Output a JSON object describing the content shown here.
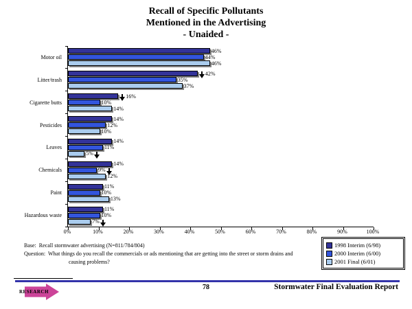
{
  "slide": {
    "title_lines": [
      "Recall of Specific Pollutants",
      "Mentioned in the Advertising",
      "- Unaided -"
    ],
    "notes": {
      "base_label": "Base:",
      "base_text": "Recall stormwater advertising (N=811/784/804)",
      "question_label": "Question:",
      "question_text": "What things do you recall the commercials or ads mentioning that are getting into the street or storm drains and causing problems?"
    },
    "footer": {
      "page_number": "78",
      "report_title": "Stormwater Final Evaluation Report",
      "logo_text": "RESEARCH"
    }
  },
  "chart_data": {
    "type": "bar",
    "orientation": "horizontal",
    "title": "Recall of Specific Pollutants Mentioned in the Advertising - Unaided -",
    "categories": [
      "Motor oil",
      "Litter/trash",
      "Cigarette butts",
      "Pesticides",
      "Leaves",
      "Chemicals",
      "Paint",
      "Hazardous waste"
    ],
    "series": [
      {
        "name": "1998 Interim (6/98)",
        "color": "#333399",
        "values": [
          46,
          42,
          16,
          14,
          14,
          14,
          11,
          11
        ]
      },
      {
        "name": "2000 Interim (6/00)",
        "color": "#3355dd",
        "values": [
          44,
          35,
          10,
          12,
          11,
          9,
          10,
          10
        ]
      },
      {
        "name": "2001 Final (6/01)",
        "color": "#aaccee",
        "values": [
          46,
          37,
          14,
          10,
          5,
          12,
          13,
          7
        ]
      }
    ],
    "value_suffix": "%",
    "decrease_arrows": [
      {
        "category_index": 1,
        "series_index": 0,
        "position": "before"
      },
      {
        "category_index": 2,
        "series_index": 0,
        "position": "before"
      },
      {
        "category_index": 4,
        "series_index": 2,
        "position": "after"
      },
      {
        "category_index": 5,
        "series_index": 1,
        "position": "after"
      },
      {
        "category_index": 7,
        "series_index": 2,
        "position": "after"
      }
    ],
    "x_axis": {
      "min": 0,
      "max": 100,
      "tick_step": 10,
      "tick_labels": [
        "0%",
        "10%",
        "20%",
        "30%",
        "40%",
        "50%",
        "60%",
        "70%",
        "80%",
        "90%",
        "100%"
      ]
    },
    "legend": {
      "position": "bottom-right"
    },
    "grid": false
  }
}
